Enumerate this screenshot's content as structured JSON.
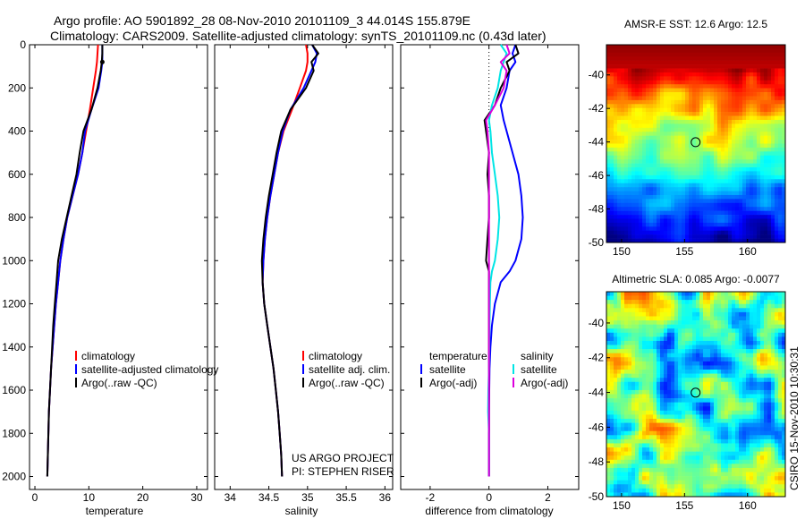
{
  "header": {
    "line1": "Argo profile: AO 5901892_28 08-Nov-2010 20101109_3 44.014S 155.879E",
    "line2": "Climatology: CARS2009. Satellite-adjusted climatology: synTS_20101109.nc (0.43d later)"
  },
  "chart_data": [
    {
      "id": "temperature",
      "type": "line",
      "xlabel": "temperature",
      "ylabel": "",
      "xlim": [
        -1,
        32
      ],
      "ylim": [
        2060,
        0
      ],
      "xticks": [
        0,
        10,
        20,
        30
      ],
      "yticks": [
        0,
        200,
        400,
        600,
        800,
        1000,
        1200,
        1400,
        1600,
        1800,
        2000
      ],
      "depth": [
        0,
        40,
        80,
        120,
        200,
        300,
        400,
        500,
        600,
        700,
        800,
        900,
        1000,
        1100,
        1200,
        1300,
        1400,
        1500,
        1600,
        1700,
        1800,
        1900,
        2000
      ],
      "series": [
        {
          "name": "climatology",
          "color": "#ff0000",
          "values": [
            11.7,
            11.6,
            11.5,
            11.3,
            10.8,
            10.2,
            9.5,
            8.8,
            8.0,
            7.0,
            6.0,
            5.3,
            4.7,
            4.3,
            3.9,
            3.6,
            3.3,
            3.0,
            2.8,
            2.6,
            2.5,
            2.4,
            2.3
          ]
        },
        {
          "name": "satellite-adjusted climatology",
          "color": "#0000ff",
          "values": [
            12.5,
            12.5,
            12.5,
            12.3,
            11.8,
            10.5,
            9.3,
            8.8,
            8.0,
            7.0,
            6.0,
            5.3,
            4.7,
            4.3,
            3.9,
            3.6,
            3.3,
            3.0,
            2.8,
            2.6,
            2.5,
            2.4,
            2.3
          ]
        },
        {
          "name": "Argo(..raw -QC)",
          "color": "#000000",
          "values": [
            12.5,
            12.5,
            12.4,
            12.2,
            11.6,
            10.5,
            9.0,
            8.3,
            7.7,
            6.8,
            5.9,
            5.0,
            4.3,
            4.0,
            3.7,
            3.4,
            3.2,
            3.0,
            2.8,
            2.6,
            2.5,
            2.4,
            2.3
          ]
        }
      ],
      "legend": [
        "climatology",
        "satellite-adjusted climatology",
        "Argo(..raw -QC)"
      ]
    },
    {
      "id": "salinity",
      "type": "line",
      "xlabel": "salinity",
      "ylabel": "",
      "xlim": [
        33.8,
        36.1
      ],
      "ylim": [
        2060,
        0
      ],
      "xticks": [
        34,
        34.5,
        35,
        35.5,
        36
      ],
      "depth": [
        0,
        40,
        80,
        120,
        200,
        300,
        400,
        500,
        600,
        700,
        800,
        900,
        1000,
        1100,
        1200,
        1300,
        1400,
        1500,
        1600,
        1700,
        1800,
        1900,
        2000
      ],
      "series": [
        {
          "name": "climatology",
          "color": "#ff0000",
          "values": [
            34.98,
            35.0,
            35.0,
            34.98,
            34.9,
            34.8,
            34.69,
            34.62,
            34.57,
            34.52,
            34.48,
            34.45,
            34.43,
            34.42,
            34.44,
            34.48,
            34.52,
            34.56,
            34.59,
            34.62,
            34.64,
            34.66,
            34.67
          ]
        },
        {
          "name": "satellite adj. clim.",
          "color": "#0000ff",
          "values": [
            35.06,
            35.12,
            35.1,
            35.05,
            34.95,
            34.78,
            34.68,
            34.62,
            34.57,
            34.52,
            34.48,
            34.45,
            34.43,
            34.42,
            34.44,
            34.48,
            34.52,
            34.56,
            34.59,
            34.62,
            34.64,
            34.66,
            34.67
          ]
        },
        {
          "name": "Argo(..raw -QC)",
          "color": "#000000",
          "values": [
            35.06,
            35.14,
            35.05,
            35.08,
            34.98,
            34.78,
            34.66,
            34.6,
            34.55,
            34.5,
            34.46,
            34.43,
            34.41,
            34.42,
            34.44,
            34.48,
            34.52,
            34.56,
            34.59,
            34.62,
            34.64,
            34.66,
            34.67
          ]
        }
      ],
      "legend": [
        "climatology",
        "satellite adj. clim.",
        "Argo(..raw -QC)"
      ],
      "annotation": [
        "US ARGO PROJECT",
        "PI: STEPHEN RISER"
      ]
    },
    {
      "id": "difference",
      "type": "line",
      "xlabel": "difference from climatology",
      "ylabel": "",
      "xlim": [
        -3,
        3.05
      ],
      "ylim": [
        2060,
        0
      ],
      "xticks": [
        -2,
        0,
        2
      ],
      "depth": [
        0,
        40,
        80,
        120,
        200,
        280,
        350,
        400,
        500,
        600,
        700,
        800,
        900,
        1000,
        1050,
        1100,
        1200,
        1300,
        1400,
        1500,
        1600,
        1700,
        1800,
        1900,
        2000
      ],
      "series": [
        {
          "name": "temperature satellite",
          "color": "#0000ff",
          "values": [
            0.9,
            0.8,
            0.9,
            0.7,
            0.6,
            0.4,
            0.5,
            0.6,
            0.8,
            1.0,
            1.1,
            1.15,
            1.1,
            0.9,
            0.7,
            0.4,
            0.2,
            0.1,
            0.05,
            0.02,
            0.01,
            0.0,
            0.0,
            0.0,
            0.0
          ]
        },
        {
          "name": "temperature Argo(-adj)",
          "color": "#000000",
          "values": [
            0.9,
            1.0,
            0.6,
            0.7,
            0.4,
            0.2,
            -0.15,
            -0.1,
            0.0,
            -0.05,
            0.0,
            0.0,
            -0.05,
            -0.1,
            0.0,
            0.0,
            0.0,
            0.0,
            0.0,
            0.0,
            0.0,
            0.0,
            0.0,
            0.0,
            0.0
          ]
        },
        {
          "name": "salinity satellite",
          "color": "#00e5e5",
          "values": [
            0.4,
            0.6,
            0.5,
            0.4,
            0.3,
            0.1,
            0.0,
            0.05,
            0.1,
            0.2,
            0.3,
            0.35,
            0.3,
            0.2,
            0.1,
            0.05,
            0.03,
            0.02,
            0.01,
            0.0,
            -0.02,
            -0.03,
            0.0,
            0.0,
            0.0
          ]
        },
        {
          "name": "salinity Argo(-adj)",
          "color": "#dd00dd",
          "values": [
            0.6,
            0.7,
            0.4,
            0.6,
            0.5,
            0.2,
            -0.1,
            -0.05,
            0.0,
            0.0,
            0.0,
            0.0,
            0.0,
            0.0,
            0.0,
            0.0,
            0.0,
            0.0,
            0.0,
            0.0,
            0.0,
            0.0,
            0.0,
            0.0,
            0.0
          ]
        }
      ],
      "legend_left": {
        "heading": "temperature",
        "items": [
          "satellite",
          "Argo(-adj)"
        ]
      },
      "legend_right": {
        "heading": "salinity",
        "items": [
          "satellite",
          "Argo(-adj)"
        ]
      }
    },
    {
      "id": "sst_map",
      "type": "heatmap",
      "title": "AMSR-E SST: 12.6 Argo: 12.5",
      "xlim": [
        148.8,
        163
      ],
      "ylim": [
        -50,
        -38.2
      ],
      "xticks": [
        150,
        155,
        160
      ],
      "yticks": [
        -40,
        -42,
        -44,
        -46,
        -48,
        -50
      ],
      "marker": {
        "lon": 155.879,
        "lat": -44.014
      }
    },
    {
      "id": "sla_map",
      "type": "heatmap",
      "title": "Altimetric SLA: 0.085 Argo: -0.0077",
      "xlim": [
        148.8,
        163
      ],
      "ylim": [
        -50,
        -38.2
      ],
      "xticks": [
        150,
        155,
        160
      ],
      "yticks": [
        -40,
        -42,
        -44,
        -46,
        -48,
        -50
      ],
      "marker": {
        "lon": 155.879,
        "lat": -44.014
      }
    }
  ],
  "side_label": "CSIRO 15-Nov-2010 10:30:31"
}
